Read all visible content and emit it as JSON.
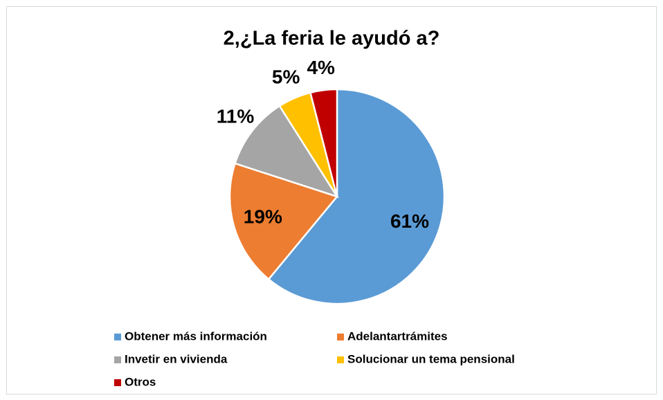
{
  "chart_data": {
    "type": "pie",
    "title": "2,¿La feria le ayudó a?",
    "categories": [
      "Obtener más información",
      "Adelantartrámites",
      "Invetir en vivienda",
      "Solucionar un tema pensional",
      "Otros"
    ],
    "values": [
      61,
      19,
      11,
      5,
      4
    ],
    "value_labels": [
      "61%",
      "19%",
      "11%",
      "5%",
      "4%"
    ],
    "colors": [
      "#5b9bd5",
      "#ed7d31",
      "#a5a5a5",
      "#ffc000",
      "#c00000"
    ],
    "legend": "bottom"
  }
}
